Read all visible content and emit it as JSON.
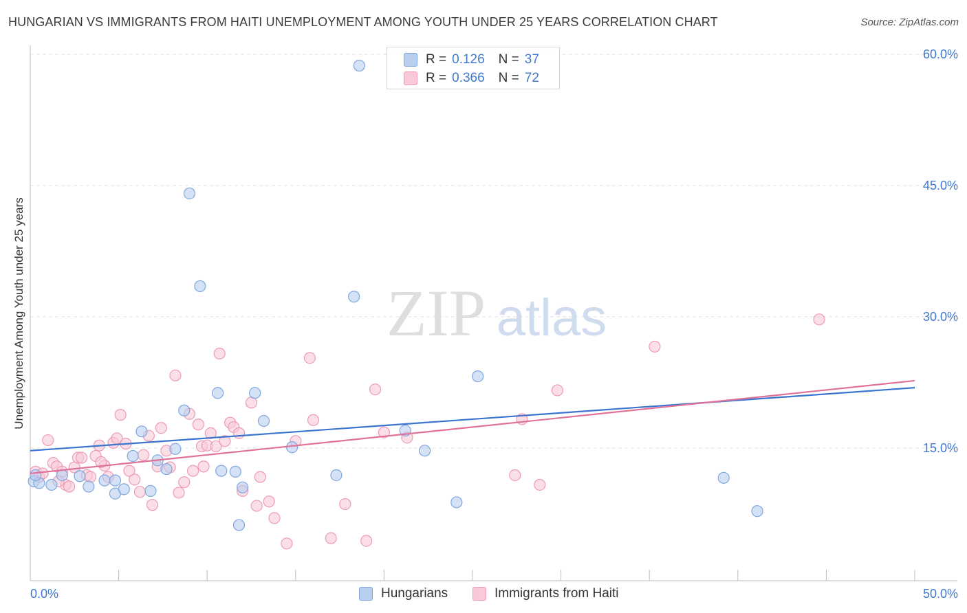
{
  "header": {
    "title": "HUNGARIAN VS IMMIGRANTS FROM HAITI UNEMPLOYMENT AMONG YOUTH UNDER 25 YEARS CORRELATION CHART",
    "source": "Source: ZipAtlas.com"
  },
  "legend": {
    "r_label": "R =",
    "n_label": "N =",
    "items": [
      {
        "name": "Hungarians",
        "r": "0.126",
        "n": "37"
      },
      {
        "name": "Immigrants from Haiti",
        "r": "0.366",
        "n": "72"
      }
    ]
  },
  "watermark": {
    "zip": "ZIP",
    "atlas": "atlas"
  },
  "colors": {
    "blue_fill": "#b9cff0",
    "blue_stroke": "#7ea6de",
    "blue_line": "#3a74d0",
    "pink_fill": "#f9c9d7",
    "pink_stroke": "#ee9ab5",
    "pink_line": "#e0729a",
    "tick_label": "#3f78cc",
    "grid": "#e2e2e2"
  },
  "chart_data": {
    "type": "scatter",
    "title": "HUNGARIAN VS IMMIGRANTS FROM HAITI UNEMPLOYMENT AMONG YOUTH UNDER 25 YEARS CORRELATION CHART",
    "xlabel": "",
    "ylabel": "Unemployment Among Youth under 25 years",
    "xlim": [
      0,
      50
    ],
    "ylim": [
      0,
      60
    ],
    "x_tick_labels": [
      {
        "value": 0,
        "label": "0.0%"
      },
      {
        "value": 50,
        "label": "50.0%"
      }
    ],
    "y_tick_labels": [
      {
        "value": 15,
        "label": "15.0%"
      },
      {
        "value": 30,
        "label": "30.0%"
      },
      {
        "value": 45,
        "label": "45.0%"
      },
      {
        "value": 60,
        "label": "60.0%"
      }
    ],
    "x_minor_ticks": [
      5,
      10,
      15,
      20,
      25,
      30,
      35,
      40,
      45,
      50
    ],
    "grid": true,
    "series": [
      {
        "name": "Hungarians",
        "r": 0.126,
        "n": 37,
        "trend": {
          "x": [
            0,
            50
          ],
          "y": [
            14.7,
            21.9
          ]
        },
        "points": [
          [
            0.2,
            11.2
          ],
          [
            0.5,
            11.0
          ],
          [
            1.2,
            10.8
          ],
          [
            1.8,
            11.9
          ],
          [
            2.8,
            11.8
          ],
          [
            3.3,
            10.6
          ],
          [
            4.2,
            11.3
          ],
          [
            4.8,
            11.3
          ],
          [
            4.8,
            9.8
          ],
          [
            5.3,
            10.3
          ],
          [
            5.8,
            14.1
          ],
          [
            6.3,
            16.9
          ],
          [
            6.8,
            10.1
          ],
          [
            7.2,
            13.6
          ],
          [
            7.7,
            12.6
          ],
          [
            8.2,
            14.9
          ],
          [
            8.7,
            19.3
          ],
          [
            9.0,
            44.1
          ],
          [
            9.6,
            33.5
          ],
          [
            10.6,
            21.3
          ],
          [
            10.8,
            12.4
          ],
          [
            11.6,
            12.3
          ],
          [
            11.8,
            6.2
          ],
          [
            12.0,
            10.5
          ],
          [
            12.7,
            21.3
          ],
          [
            13.2,
            18.1
          ],
          [
            14.8,
            15.1
          ],
          [
            17.3,
            11.9
          ],
          [
            18.3,
            32.3
          ],
          [
            18.6,
            58.7
          ],
          [
            21.2,
            17.0
          ],
          [
            22.3,
            14.7
          ],
          [
            24.1,
            8.8
          ],
          [
            25.3,
            23.2
          ],
          [
            39.2,
            11.6
          ],
          [
            41.1,
            7.8
          ],
          [
            0.3,
            11.9
          ]
        ]
      },
      {
        "name": "Immigrants from Haiti",
        "r": 0.366,
        "n": 72,
        "trend": {
          "x": [
            0,
            50
          ],
          "y": [
            12.1,
            22.7
          ]
        },
        "points": [
          [
            0.3,
            12.3
          ],
          [
            0.5,
            11.7
          ],
          [
            0.7,
            12.1
          ],
          [
            1.0,
            15.9
          ],
          [
            1.3,
            13.3
          ],
          [
            1.5,
            12.9
          ],
          [
            1.8,
            12.3
          ],
          [
            2.0,
            10.8
          ],
          [
            2.2,
            10.6
          ],
          [
            2.5,
            12.8
          ],
          [
            2.7,
            13.9
          ],
          [
            2.9,
            13.9
          ],
          [
            3.2,
            11.9
          ],
          [
            3.4,
            11.7
          ],
          [
            3.7,
            14.1
          ],
          [
            3.9,
            15.3
          ],
          [
            4.2,
            13.0
          ],
          [
            4.4,
            11.7
          ],
          [
            4.7,
            15.6
          ],
          [
            4.9,
            16.1
          ],
          [
            5.1,
            18.8
          ],
          [
            5.4,
            15.5
          ],
          [
            5.6,
            12.4
          ],
          [
            5.9,
            11.4
          ],
          [
            6.2,
            10.0
          ],
          [
            6.4,
            14.2
          ],
          [
            6.7,
            16.4
          ],
          [
            6.9,
            8.5
          ],
          [
            7.2,
            12.9
          ],
          [
            7.4,
            17.3
          ],
          [
            7.7,
            14.7
          ],
          [
            7.9,
            12.8
          ],
          [
            8.2,
            23.3
          ],
          [
            8.4,
            9.9
          ],
          [
            8.7,
            11.1
          ],
          [
            9.0,
            18.9
          ],
          [
            9.2,
            12.4
          ],
          [
            9.5,
            17.7
          ],
          [
            9.7,
            15.2
          ],
          [
            10.0,
            15.3
          ],
          [
            10.2,
            16.7
          ],
          [
            10.5,
            15.2
          ],
          [
            10.7,
            25.8
          ],
          [
            11.0,
            15.8
          ],
          [
            11.3,
            17.9
          ],
          [
            11.5,
            17.4
          ],
          [
            11.8,
            16.7
          ],
          [
            12.0,
            10.1
          ],
          [
            12.5,
            20.2
          ],
          [
            12.8,
            8.4
          ],
          [
            13.0,
            11.7
          ],
          [
            13.5,
            8.9
          ],
          [
            13.8,
            7.0
          ],
          [
            14.5,
            4.1
          ],
          [
            15.0,
            15.8
          ],
          [
            15.8,
            25.3
          ],
          [
            16.0,
            18.2
          ],
          [
            17.0,
            4.7
          ],
          [
            17.8,
            8.6
          ],
          [
            19.0,
            4.4
          ],
          [
            19.5,
            21.7
          ],
          [
            20.0,
            16.8
          ],
          [
            21.3,
            16.2
          ],
          [
            27.4,
            11.9
          ],
          [
            27.8,
            18.3
          ],
          [
            28.8,
            10.8
          ],
          [
            29.8,
            21.6
          ],
          [
            35.3,
            26.6
          ],
          [
            44.6,
            29.7
          ],
          [
            4.0,
            13.4
          ],
          [
            9.8,
            12.9
          ],
          [
            1.6,
            11.2
          ]
        ]
      }
    ]
  }
}
